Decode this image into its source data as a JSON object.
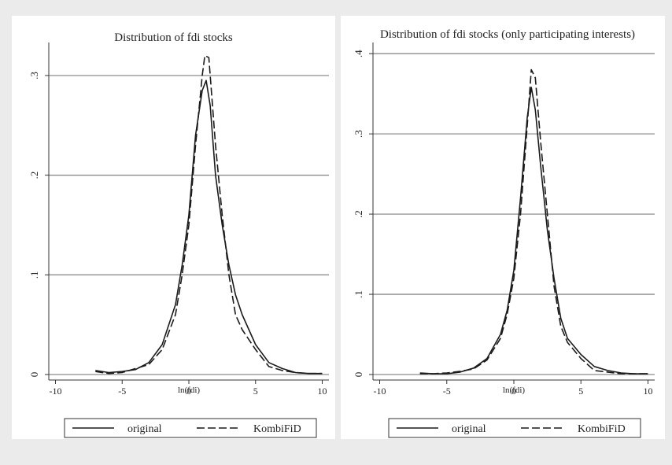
{
  "chart_data": [
    {
      "type": "line",
      "title": "Distribution of fdi stocks",
      "xlabel": "ln(fdi)",
      "ylabel": "",
      "xlim": [
        -10.5,
        10.5
      ],
      "ylim": [
        0,
        0.33
      ],
      "xticks": [
        "-10",
        "-5",
        "0",
        "5",
        "10"
      ],
      "yticks": [
        "0",
        ".1",
        ".2",
        ".3"
      ],
      "grid": true,
      "legend_position": "bottom",
      "series": [
        {
          "name": "original",
          "dash": "solid",
          "points": [
            [
              -7,
              0.004
            ],
            [
              -6,
              0.002
            ],
            [
              -5,
              0.003
            ],
            [
              -4,
              0.005
            ],
            [
              -3,
              0.012
            ],
            [
              -2,
              0.03
            ],
            [
              -1,
              0.07
            ],
            [
              -0.5,
              0.11
            ],
            [
              0,
              0.16
            ],
            [
              0.5,
              0.24
            ],
            [
              1,
              0.285
            ],
            [
              1.3,
              0.295
            ],
            [
              1.6,
              0.27
            ],
            [
              2,
              0.2
            ],
            [
              2.5,
              0.15
            ],
            [
              3,
              0.11
            ],
            [
              3.5,
              0.08
            ],
            [
              4,
              0.06
            ],
            [
              5,
              0.03
            ],
            [
              6,
              0.012
            ],
            [
              7,
              0.006
            ],
            [
              8,
              0.002
            ],
            [
              9,
              0.001
            ],
            [
              10,
              0.001
            ]
          ]
        },
        {
          "name": "KombiFiD",
          "dash": "dashed",
          "points": [
            [
              -7,
              0.003
            ],
            [
              -6,
              0.001
            ],
            [
              -5,
              0.002
            ],
            [
              -4,
              0.006
            ],
            [
              -3,
              0.01
            ],
            [
              -2,
              0.025
            ],
            [
              -1,
              0.06
            ],
            [
              -0.5,
              0.1
            ],
            [
              0,
              0.15
            ],
            [
              0.5,
              0.23
            ],
            [
              1,
              0.3
            ],
            [
              1.2,
              0.32
            ],
            [
              1.5,
              0.318
            ],
            [
              2,
              0.23
            ],
            [
              2.5,
              0.16
            ],
            [
              3,
              0.1
            ],
            [
              3.5,
              0.06
            ],
            [
              4,
              0.045
            ],
            [
              5,
              0.025
            ],
            [
              6,
              0.008
            ],
            [
              7,
              0.004
            ],
            [
              8,
              0.002
            ],
            [
              9,
              0.001
            ],
            [
              10,
              0.001
            ]
          ]
        }
      ]
    },
    {
      "type": "line",
      "title": "Distribution of fdi stocks (only participating interests)",
      "xlabel": "ln(fdi)",
      "ylabel": "",
      "xlim": [
        -10.5,
        10.5
      ],
      "ylim": [
        0,
        0.41
      ],
      "xticks": [
        "-10",
        "-5",
        "0",
        "5",
        "10"
      ],
      "yticks": [
        "0",
        ".1",
        ".2",
        ".3",
        ".4"
      ],
      "grid": true,
      "legend_position": "bottom",
      "series": [
        {
          "name": "original",
          "dash": "solid",
          "points": [
            [
              -7,
              0.002
            ],
            [
              -6,
              0.001
            ],
            [
              -5,
              0.001
            ],
            [
              -4,
              0.003
            ],
            [
              -3,
              0.008
            ],
            [
              -2,
              0.02
            ],
            [
              -1,
              0.05
            ],
            [
              -0.5,
              0.08
            ],
            [
              0,
              0.13
            ],
            [
              0.5,
              0.22
            ],
            [
              1,
              0.32
            ],
            [
              1.3,
              0.358
            ],
            [
              1.6,
              0.33
            ],
            [
              2,
              0.26
            ],
            [
              2.5,
              0.18
            ],
            [
              3,
              0.12
            ],
            [
              3.5,
              0.07
            ],
            [
              4,
              0.045
            ],
            [
              5,
              0.025
            ],
            [
              6,
              0.01
            ],
            [
              7,
              0.005
            ],
            [
              8,
              0.002
            ],
            [
              9,
              0.001
            ],
            [
              10,
              0.001
            ]
          ]
        },
        {
          "name": "KombiFiD",
          "dash": "dashed",
          "points": [
            [
              -7,
              0.001
            ],
            [
              -6,
              0.001
            ],
            [
              -5,
              0.002
            ],
            [
              -4,
              0.004
            ],
            [
              -3,
              0.007
            ],
            [
              -2,
              0.018
            ],
            [
              -1,
              0.045
            ],
            [
              -0.5,
              0.075
            ],
            [
              0,
              0.12
            ],
            [
              0.5,
              0.2
            ],
            [
              1,
              0.31
            ],
            [
              1.3,
              0.38
            ],
            [
              1.6,
              0.37
            ],
            [
              2,
              0.29
            ],
            [
              2.5,
              0.2
            ],
            [
              3,
              0.11
            ],
            [
              3.5,
              0.06
            ],
            [
              4,
              0.04
            ],
            [
              5,
              0.02
            ],
            [
              6,
              0.005
            ],
            [
              7,
              0.003
            ],
            [
              8,
              0.001
            ],
            [
              9,
              0.001
            ],
            [
              10,
              0.001
            ]
          ]
        }
      ]
    }
  ]
}
